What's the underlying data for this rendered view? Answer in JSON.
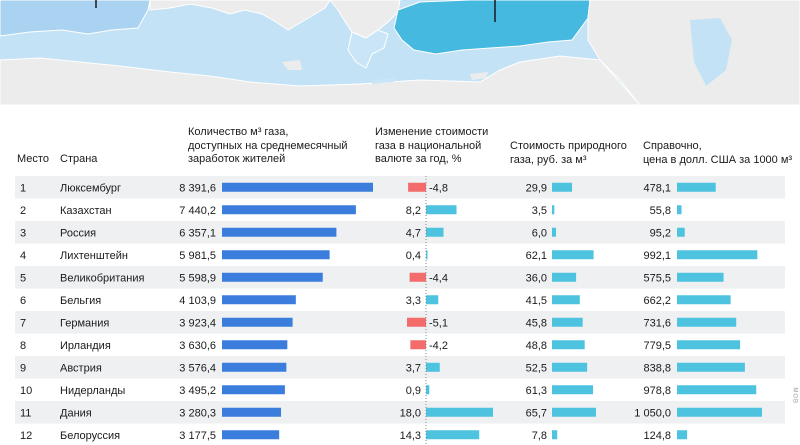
{
  "colors": {
    "blue_bar": "#3b7ddd",
    "cyan_bar": "#4ec3e0",
    "red_bar": "#f36b6b",
    "row_stripe": "#eef0f2",
    "sea": "#c4e2f5",
    "land": "#ececec",
    "highlight_spain": "#a9d3f0",
    "highlight_turkey": "#45b9df",
    "greece": "#c9e5f7"
  },
  "headers": {
    "rank": "Место",
    "country": "Страна",
    "gas_volume": [
      "Количество м³ газа,",
      "доступных на среднемесячный",
      "заработок жителей"
    ],
    "price_change": [
      "Изменение стоимости",
      "газа в национальной",
      "валюте за год, %"
    ],
    "price_rub": [
      "Стоимость природного",
      "газа, руб. за м³"
    ],
    "price_usd": [
      "Справочно,",
      "цена в долл. США за 1000 м³"
    ]
  },
  "watermark": "MOB",
  "chart_data": {
    "type": "table",
    "columns": [
      "Место",
      "Страна",
      "Количество м³ газа, доступных на среднемесячный заработок жителей",
      "Изменение стоимости газа в национальной валюте за год, %",
      "Стоимость природного газа, руб. за м³",
      "Справочно, цена в долл. США за 1000 м³"
    ],
    "rows": [
      {
        "rank": "1",
        "country": "Люксембург",
        "volume": 8391.6,
        "volume_label": "8 391,6",
        "change": -4.8,
        "change_label": "-4,8",
        "rub": 29.9,
        "rub_label": "29,9",
        "usd": 478.1,
        "usd_label": "478,1"
      },
      {
        "rank": "2",
        "country": "Казахстан",
        "volume": 7440.2,
        "volume_label": "7 440,2",
        "change": 8.2,
        "change_label": "8,2",
        "rub": 3.5,
        "rub_label": "3,5",
        "usd": 55.8,
        "usd_label": "55,8"
      },
      {
        "rank": "3",
        "country": "Россия",
        "volume": 6357.1,
        "volume_label": "6 357,1",
        "change": 4.7,
        "change_label": "4,7",
        "rub": 6.0,
        "rub_label": "6,0",
        "usd": 95.2,
        "usd_label": "95,2"
      },
      {
        "rank": "4",
        "country": "Лихтенштейн",
        "volume": 5981.5,
        "volume_label": "5 981,5",
        "change": 0.4,
        "change_label": "0,4",
        "rub": 62.1,
        "rub_label": "62,1",
        "usd": 992.1,
        "usd_label": "992,1"
      },
      {
        "rank": "5",
        "country": "Великобритания",
        "volume": 5598.9,
        "volume_label": "5 598,9",
        "change": -4.4,
        "change_label": "-4,4",
        "rub": 36.0,
        "rub_label": "36,0",
        "usd": 575.5,
        "usd_label": "575,5"
      },
      {
        "rank": "6",
        "country": "Бельгия",
        "volume": 4103.9,
        "volume_label": "4 103,9",
        "change": 3.3,
        "change_label": "3,3",
        "rub": 41.5,
        "rub_label": "41,5",
        "usd": 662.2,
        "usd_label": "662,2"
      },
      {
        "rank": "7",
        "country": "Германия",
        "volume": 3923.4,
        "volume_label": "3 923,4",
        "change": -5.1,
        "change_label": "-5,1",
        "rub": 45.8,
        "rub_label": "45,8",
        "usd": 731.6,
        "usd_label": "731,6"
      },
      {
        "rank": "8",
        "country": "Ирландия",
        "volume": 3630.6,
        "volume_label": "3 630,6",
        "change": -4.2,
        "change_label": "-4,2",
        "rub": 48.8,
        "rub_label": "48,8",
        "usd": 779.5,
        "usd_label": "779,5"
      },
      {
        "rank": "9",
        "country": "Австрия",
        "volume": 3576.4,
        "volume_label": "3 576,4",
        "change": 3.7,
        "change_label": "3,7",
        "rub": 52.5,
        "rub_label": "52,5",
        "usd": 838.8,
        "usd_label": "838,8"
      },
      {
        "rank": "10",
        "country": "Нидерланды",
        "volume": 3495.2,
        "volume_label": "3 495,2",
        "change": 0.9,
        "change_label": "0,9",
        "rub": 61.3,
        "rub_label": "61,3",
        "usd": 978.8,
        "usd_label": "978,8"
      },
      {
        "rank": "11",
        "country": "Дания",
        "volume": 3280.3,
        "volume_label": "3 280,3",
        "change": 18.0,
        "change_label": "18,0",
        "rub": 65.7,
        "rub_label": "65,7",
        "usd": 1050.0,
        "usd_label": "1 050,0"
      },
      {
        "rank": "12",
        "country": "Белоруссия",
        "volume": 3177.5,
        "volume_label": "3 177,5",
        "change": 14.3,
        "change_label": "14,3",
        "rub": 7.8,
        "rub_label": "7,8",
        "usd": 124.8,
        "usd_label": "124,8"
      }
    ]
  }
}
